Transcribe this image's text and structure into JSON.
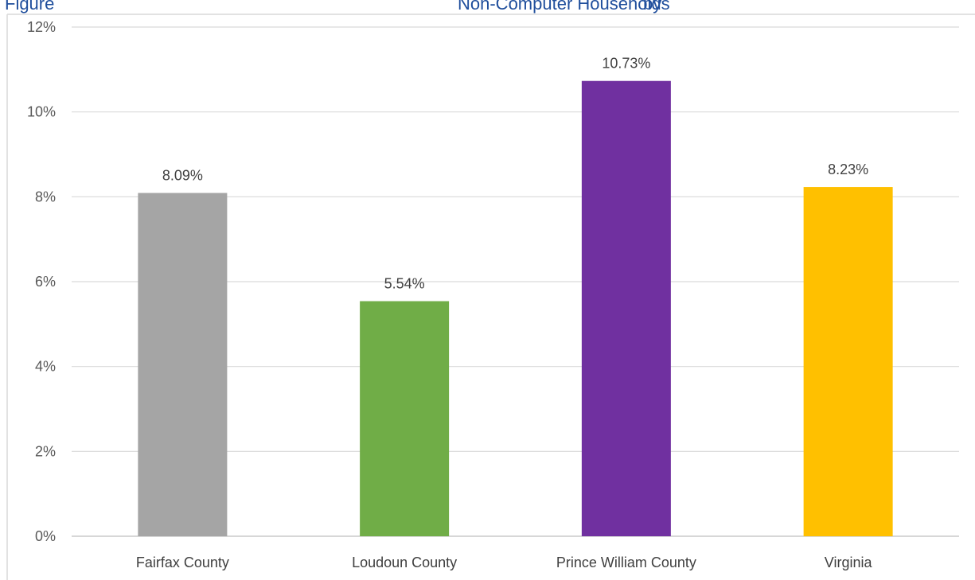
{
  "title_fragments": [
    "Figure",
    "Non-Computer Households",
    "by"
  ],
  "chart_data": {
    "type": "bar",
    "title": "",
    "xlabel": "",
    "ylabel": "",
    "categories": [
      "Fairfax County",
      "Loudoun County",
      "Prince William County",
      "Virginia"
    ],
    "values": [
      8.09,
      5.54,
      10.73,
      8.23
    ],
    "data_labels": [
      "8.09%",
      "5.54%",
      "10.73%",
      "8.23%"
    ],
    "colors": [
      "#a5a5a5",
      "#70ad47",
      "#7030a0",
      "#ffc000"
    ],
    "ylim": [
      0,
      12
    ],
    "yticks": [
      0,
      2,
      4,
      6,
      8,
      10,
      12
    ],
    "ytick_labels": [
      "0%",
      "2%",
      "4%",
      "6%",
      "8%",
      "10%",
      "12%"
    ],
    "grid": true,
    "legend": "none"
  }
}
